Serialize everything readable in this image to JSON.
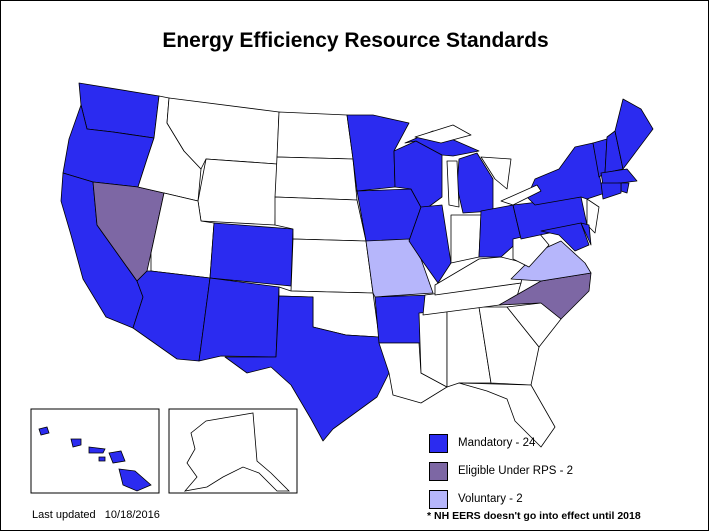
{
  "title": "Energy Efficiency Resource Standards",
  "colors": {
    "mandatory": "#2b2bf0",
    "eligible_under_rps": "#7d67a4",
    "voluntary": "#b6b6fb",
    "none": "#ffffff",
    "border": "#000000"
  },
  "legend": [
    {
      "label": "Mandatory -",
      "count": "24",
      "color_key": "mandatory"
    },
    {
      "label": "Eligible Under RPS -",
      "count": "2",
      "color_key": "eligible_under_rps"
    },
    {
      "label": "Voluntary -",
      "count": "2",
      "color_key": "voluntary"
    }
  ],
  "footnote": "* NH EERS doesn't go into effect until 2018",
  "last_updated": {
    "label": "Last updated",
    "date": "10/18/2016"
  }
}
